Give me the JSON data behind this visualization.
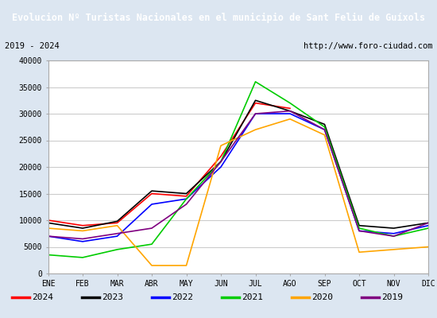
{
  "title": "Evolucion Nº Turistas Nacionales en el municipio de Sant Feliu de Guíxols",
  "subtitle_left": "2019 - 2024",
  "subtitle_right": "http://www.foro-ciudad.com",
  "title_bg": "#4a7fc1",
  "title_color": "white",
  "months": [
    "ENE",
    "FEB",
    "MAR",
    "ABR",
    "MAY",
    "JUN",
    "JUL",
    "AGO",
    "SEP",
    "OCT",
    "NOV",
    "DIC"
  ],
  "ylim": [
    0,
    40000
  ],
  "yticks": [
    0,
    5000,
    10000,
    15000,
    20000,
    25000,
    30000,
    35000,
    40000
  ],
  "series": {
    "2024": {
      "color": "red",
      "data": [
        10000,
        9000,
        9500,
        15000,
        14500,
        22000,
        32000,
        31000,
        null,
        null,
        null,
        null
      ]
    },
    "2023": {
      "color": "black",
      "data": [
        9500,
        8500,
        9800,
        15500,
        15000,
        21000,
        32500,
        30500,
        28000,
        9000,
        8500,
        9500
      ]
    },
    "2022": {
      "color": "blue",
      "data": [
        7000,
        6000,
        7000,
        13000,
        14000,
        20000,
        30000,
        30000,
        27000,
        8000,
        7500,
        9000
      ]
    },
    "2021": {
      "color": "#00cc00",
      "data": [
        3500,
        3000,
        4500,
        5500,
        14000,
        21000,
        36000,
        32000,
        27500,
        8500,
        7000,
        8500
      ]
    },
    "2020": {
      "color": "orange",
      "data": [
        8500,
        8000,
        9000,
        1500,
        1500,
        24000,
        27000,
        29000,
        26000,
        4000,
        4500,
        5000
      ]
    },
    "2019": {
      "color": "purple",
      "data": [
        7000,
        6500,
        7500,
        8500,
        13000,
        21000,
        30000,
        30500,
        27000,
        8000,
        7000,
        9500
      ]
    }
  },
  "legend_order": [
    "2024",
    "2023",
    "2022",
    "2021",
    "2020",
    "2019"
  ],
  "plot_bg": "white",
  "grid_color": "#cccccc",
  "outer_bg": "#dce6f1",
  "fig_width": 5.5,
  "fig_height": 4.0,
  "dpi": 100
}
